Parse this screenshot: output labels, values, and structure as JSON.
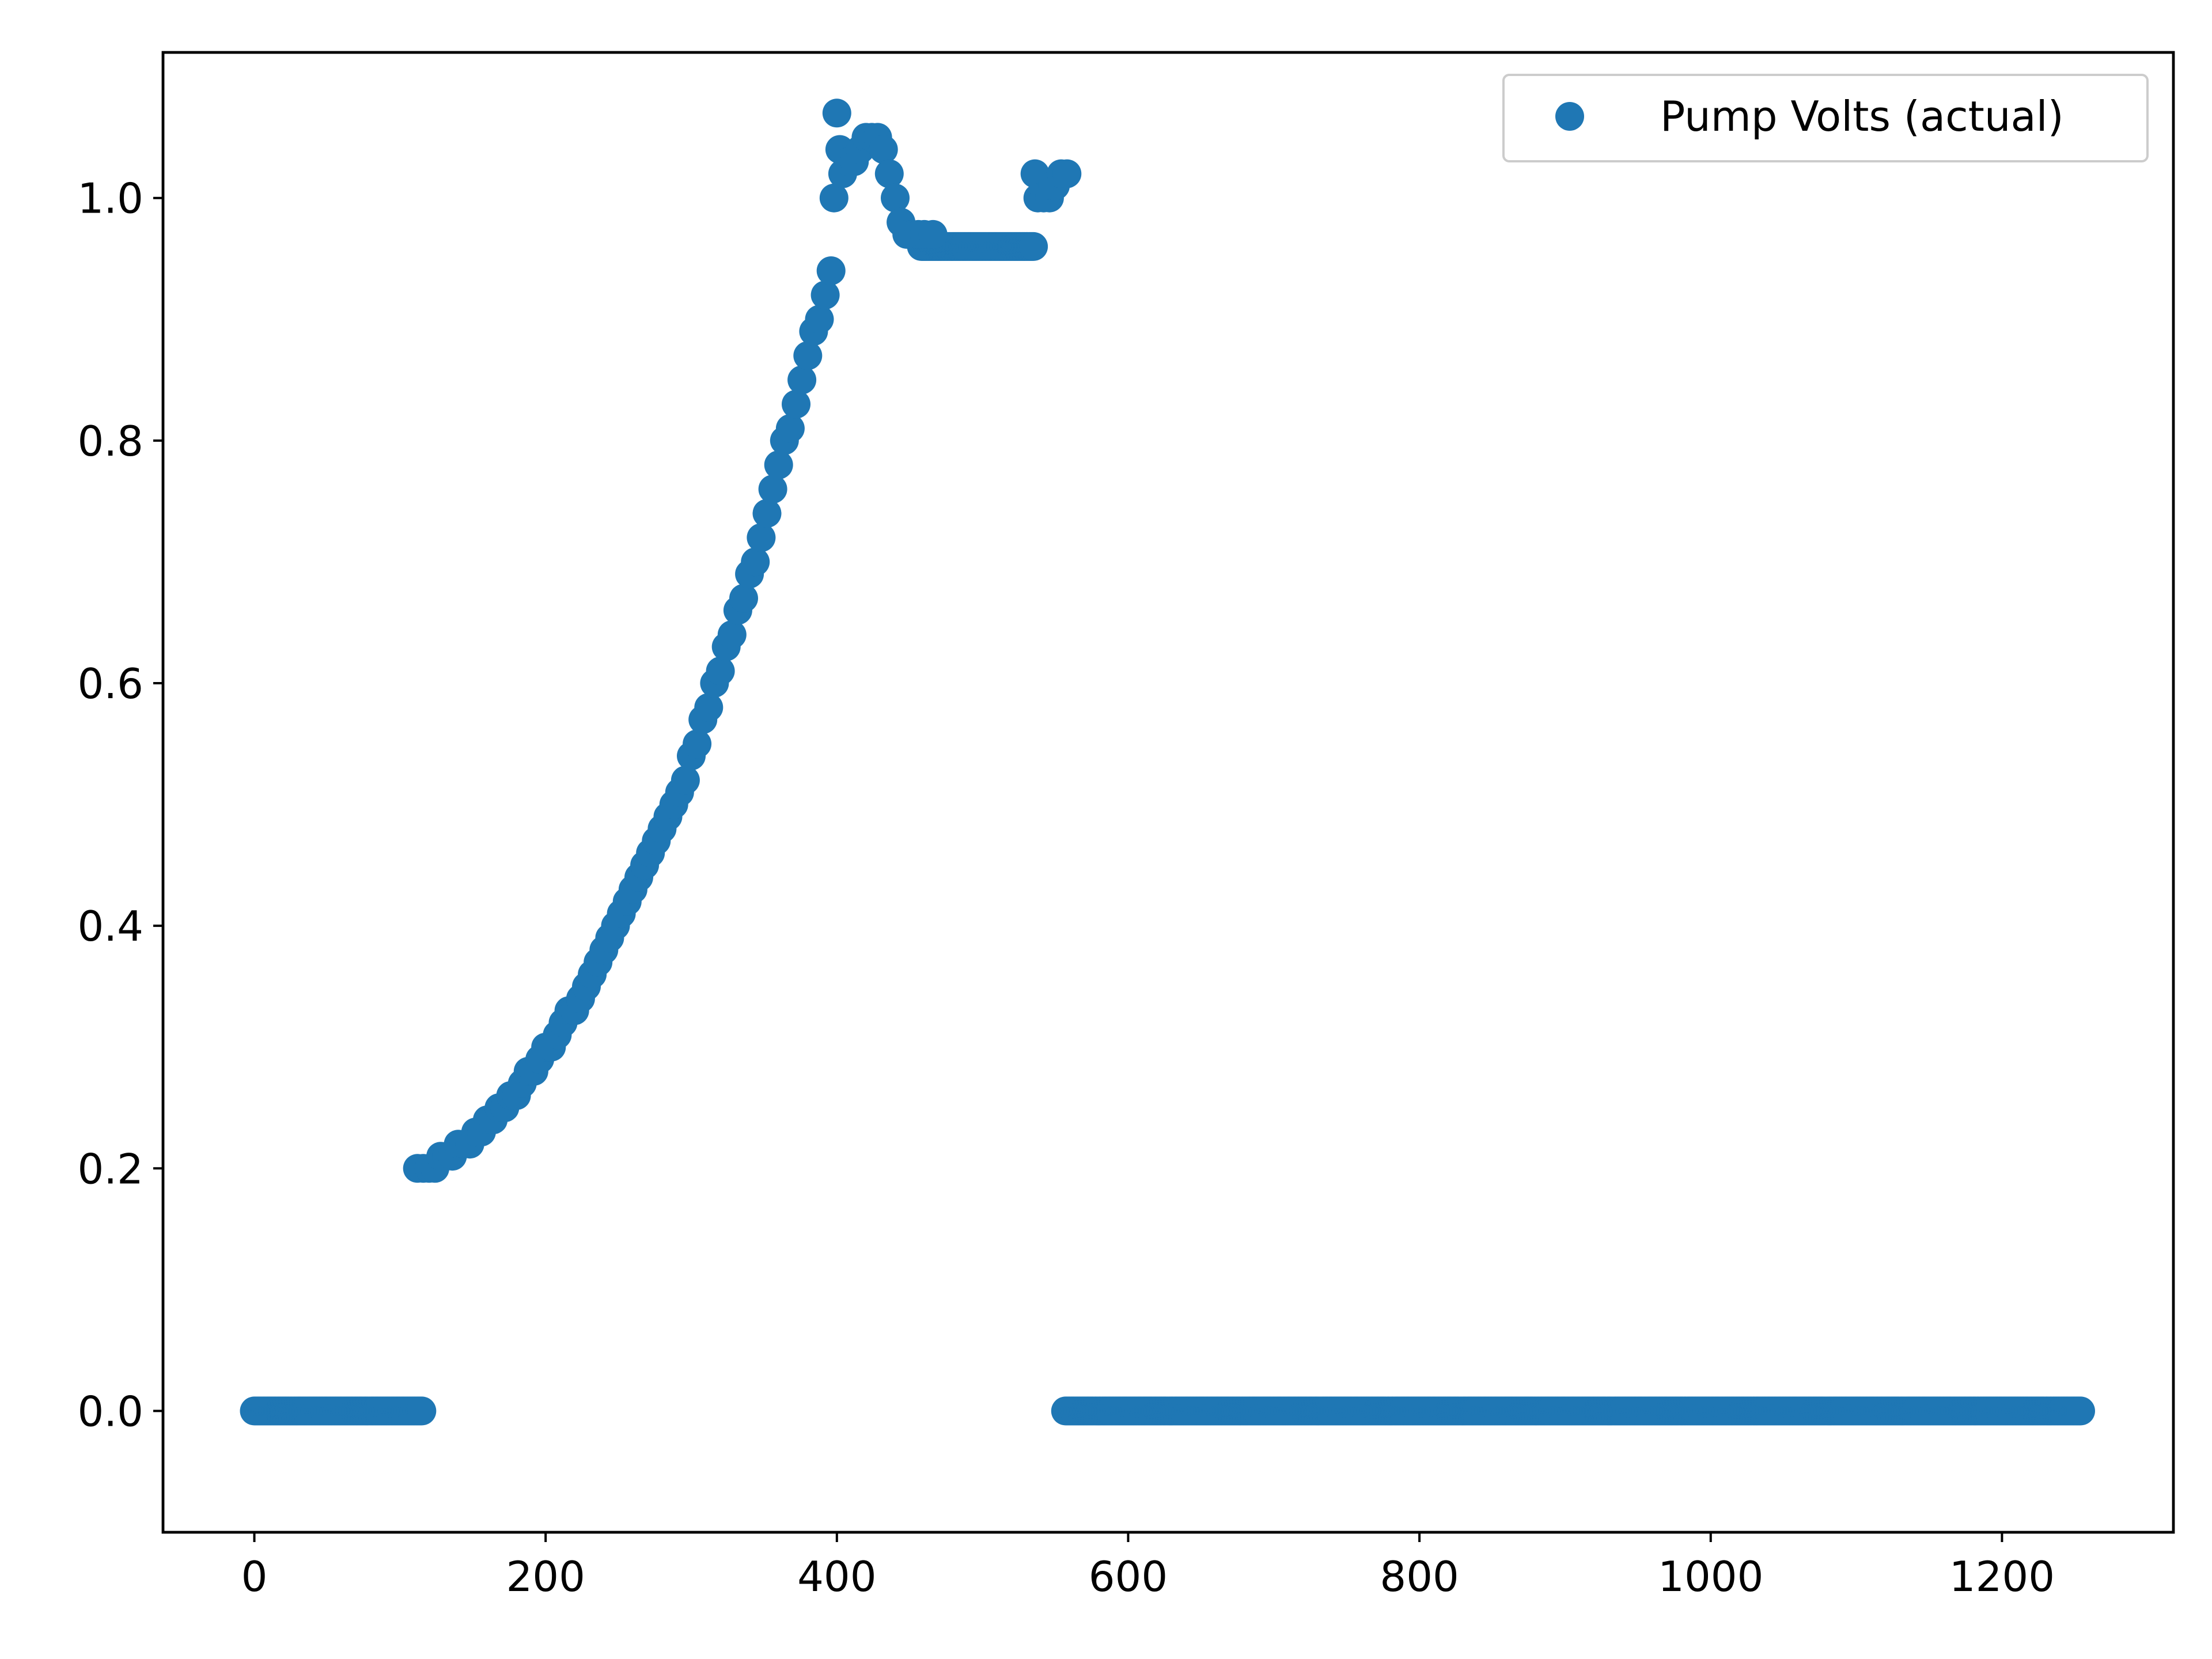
{
  "chart_data": {
    "type": "scatter",
    "title": "",
    "xlabel": "",
    "ylabel": "",
    "xlim": [
      -62.7,
      1317.7
    ],
    "ylim": [
      -0.1,
      1.12
    ],
    "grid": false,
    "legend_position": "top-right",
    "xticks": [
      0,
      200,
      400,
      600,
      800,
      1000,
      1200
    ],
    "yticks": [
      0.0,
      0.2,
      0.4,
      0.6,
      0.8,
      1.0
    ],
    "xtick_labels": [
      "0",
      "200",
      "400",
      "600",
      "800",
      "1000",
      "1200"
    ],
    "ytick_labels": [
      "0.0",
      "0.2",
      "0.4",
      "0.6",
      "0.8",
      "1.0"
    ],
    "series": [
      {
        "name": "Pump Volts (actual)",
        "color": "#1f77b4",
        "segments": [
          {
            "x_start": 0,
            "x_end": 115,
            "step": 1,
            "y": 0.0
          },
          {
            "x_start": 557,
            "x_end": 1254,
            "step": 1,
            "y": 0.0
          },
          {
            "x_start": 458,
            "x_end": 535,
            "step": 1,
            "y": 0.96
          }
        ],
        "points": [
          [
            112,
            0.2
          ],
          [
            116,
            0.2
          ],
          [
            120,
            0.2
          ],
          [
            124,
            0.2
          ],
          [
            128,
            0.21
          ],
          [
            132,
            0.21
          ],
          [
            136,
            0.21
          ],
          [
            140,
            0.22
          ],
          [
            144,
            0.22
          ],
          [
            148,
            0.22
          ],
          [
            152,
            0.23
          ],
          [
            156,
            0.23
          ],
          [
            160,
            0.24
          ],
          [
            164,
            0.24
          ],
          [
            168,
            0.25
          ],
          [
            172,
            0.25
          ],
          [
            176,
            0.26
          ],
          [
            180,
            0.26
          ],
          [
            184,
            0.27
          ],
          [
            188,
            0.28
          ],
          [
            192,
            0.28
          ],
          [
            196,
            0.29
          ],
          [
            200,
            0.3
          ],
          [
            204,
            0.3
          ],
          [
            208,
            0.31
          ],
          [
            212,
            0.32
          ],
          [
            216,
            0.33
          ],
          [
            220,
            0.33
          ],
          [
            224,
            0.34
          ],
          [
            228,
            0.35
          ],
          [
            232,
            0.36
          ],
          [
            236,
            0.37
          ],
          [
            240,
            0.38
          ],
          [
            244,
            0.39
          ],
          [
            248,
            0.4
          ],
          [
            252,
            0.41
          ],
          [
            256,
            0.42
          ],
          [
            260,
            0.43
          ],
          [
            264,
            0.44
          ],
          [
            268,
            0.45
          ],
          [
            272,
            0.46
          ],
          [
            276,
            0.47
          ],
          [
            280,
            0.48
          ],
          [
            284,
            0.49
          ],
          [
            288,
            0.5
          ],
          [
            292,
            0.51
          ],
          [
            296,
            0.52
          ],
          [
            300,
            0.54
          ],
          [
            304,
            0.55
          ],
          [
            308,
            0.57
          ],
          [
            312,
            0.58
          ],
          [
            316,
            0.6
          ],
          [
            320,
            0.61
          ],
          [
            324,
            0.63
          ],
          [
            328,
            0.64
          ],
          [
            332,
            0.66
          ],
          [
            336,
            0.67
          ],
          [
            340,
            0.69
          ],
          [
            344,
            0.7
          ],
          [
            348,
            0.72
          ],
          [
            352,
            0.74
          ],
          [
            356,
            0.76
          ],
          [
            360,
            0.78
          ],
          [
            364,
            0.8
          ],
          [
            368,
            0.81
          ],
          [
            372,
            0.83
          ],
          [
            376,
            0.85
          ],
          [
            380,
            0.87
          ],
          [
            384,
            0.89
          ],
          [
            388,
            0.9
          ],
          [
            392,
            0.92
          ],
          [
            396,
            0.94
          ],
          [
            398,
            1.0
          ],
          [
            400,
            1.07
          ],
          [
            402,
            1.04
          ],
          [
            404,
            1.02
          ],
          [
            408,
            1.03
          ],
          [
            412,
            1.03
          ],
          [
            416,
            1.04
          ],
          [
            420,
            1.05
          ],
          [
            424,
            1.05
          ],
          [
            428,
            1.05
          ],
          [
            432,
            1.04
          ],
          [
            436,
            1.02
          ],
          [
            440,
            1.0
          ],
          [
            444,
            0.98
          ],
          [
            448,
            0.97
          ],
          [
            452,
            0.97
          ],
          [
            456,
            0.97
          ],
          [
            460,
            0.97
          ],
          [
            466,
            0.97
          ],
          [
            536,
            1.02
          ],
          [
            538,
            1.0
          ],
          [
            542,
            1.0
          ],
          [
            546,
            1.0
          ],
          [
            548,
            1.01
          ],
          [
            550,
            1.01
          ],
          [
            554,
            1.02
          ],
          [
            558,
            1.02
          ]
        ]
      }
    ]
  }
}
